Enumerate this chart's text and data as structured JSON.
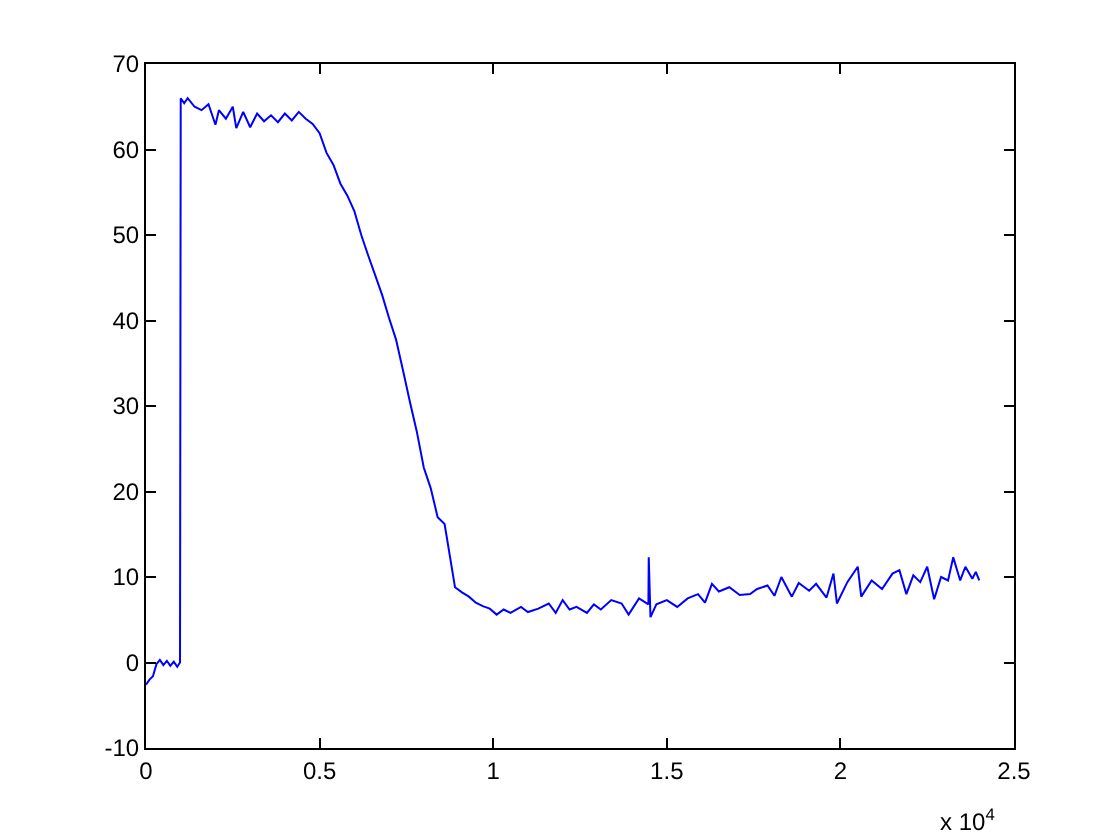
{
  "chart_data": {
    "type": "line",
    "color": "#0000ff",
    "line_style": "solid",
    "x": [
      0,
      0.01,
      0.02,
      0.03,
      0.04,
      0.05,
      0.06,
      0.07,
      0.08,
      0.09,
      0.098,
      0.1,
      0.11,
      0.12,
      0.14,
      0.16,
      0.18,
      0.2,
      0.21,
      0.23,
      0.25,
      0.26,
      0.28,
      0.3,
      0.32,
      0.34,
      0.36,
      0.38,
      0.4,
      0.42,
      0.44,
      0.46,
      0.48,
      0.5,
      0.52,
      0.54,
      0.56,
      0.58,
      0.6,
      0.62,
      0.64,
      0.66,
      0.68,
      0.7,
      0.72,
      0.74,
      0.76,
      0.78,
      0.8,
      0.82,
      0.84,
      0.86,
      0.875,
      0.89,
      0.91,
      0.93,
      0.95,
      0.97,
      0.99,
      1.01,
      1.03,
      1.05,
      1.08,
      1.1,
      1.13,
      1.16,
      1.18,
      1.2,
      1.22,
      1.24,
      1.27,
      1.29,
      1.31,
      1.34,
      1.37,
      1.39,
      1.42,
      1.447,
      1.448,
      1.453,
      1.47,
      1.5,
      1.53,
      1.56,
      1.59,
      1.61,
      1.63,
      1.65,
      1.68,
      1.71,
      1.74,
      1.76,
      1.79,
      1.81,
      1.83,
      1.86,
      1.88,
      1.91,
      1.93,
      1.96,
      1.98,
      1.99,
      2.02,
      2.05,
      2.06,
      2.09,
      2.12,
      2.15,
      2.17,
      2.19,
      2.21,
      2.23,
      2.25,
      2.27,
      2.29,
      2.31,
      2.325,
      2.345,
      2.36,
      2.38,
      2.39,
      2.4
    ],
    "values": [
      -2.6,
      -2.0,
      -1.6,
      -0.2,
      0.3,
      -0.3,
      0.2,
      -0.4,
      0.1,
      -0.5,
      0.0,
      66.0,
      65.4,
      66.0,
      65.0,
      64.6,
      65.3,
      62.9,
      64.6,
      63.6,
      65.0,
      62.5,
      64.4,
      62.6,
      64.2,
      63.3,
      64.0,
      63.2,
      64.2,
      63.4,
      64.4,
      63.6,
      63.0,
      61.9,
      59.6,
      58.2,
      56.0,
      54.6,
      52.8,
      50.0,
      47.6,
      45.3,
      43.0,
      40.3,
      37.8,
      34.2,
      30.5,
      27.0,
      22.8,
      20.4,
      17.0,
      16.2,
      12.5,
      8.8,
      8.2,
      7.7,
      7.0,
      6.6,
      6.3,
      5.6,
      6.2,
      5.8,
      6.5,
      5.9,
      6.3,
      6.9,
      5.8,
      7.3,
      6.2,
      6.5,
      5.8,
      6.8,
      6.2,
      7.3,
      6.9,
      5.6,
      7.5,
      6.8,
      12.3,
      5.3,
      6.8,
      7.3,
      6.5,
      7.5,
      8.0,
      7.0,
      9.2,
      8.3,
      8.8,
      7.9,
      8.0,
      8.6,
      9.0,
      7.8,
      10.0,
      7.7,
      9.3,
      8.4,
      9.2,
      7.6,
      10.4,
      6.9,
      9.4,
      11.2,
      7.7,
      9.6,
      8.6,
      10.4,
      10.8,
      8.0,
      10.2,
      9.4,
      11.2,
      7.4,
      10.0,
      9.6,
      12.3,
      9.6,
      11.2,
      9.8,
      10.6,
      9.6
    ],
    "xlim": [
      0,
      2.5
    ],
    "ylim": [
      -10,
      70
    ],
    "xticks": [
      0,
      0.5,
      1,
      1.5,
      2,
      2.5
    ],
    "yticks": [
      -10,
      0,
      10,
      20,
      30,
      40,
      50,
      60,
      70
    ],
    "annotations": [
      "x 10$^{4}$"
    ]
  }
}
